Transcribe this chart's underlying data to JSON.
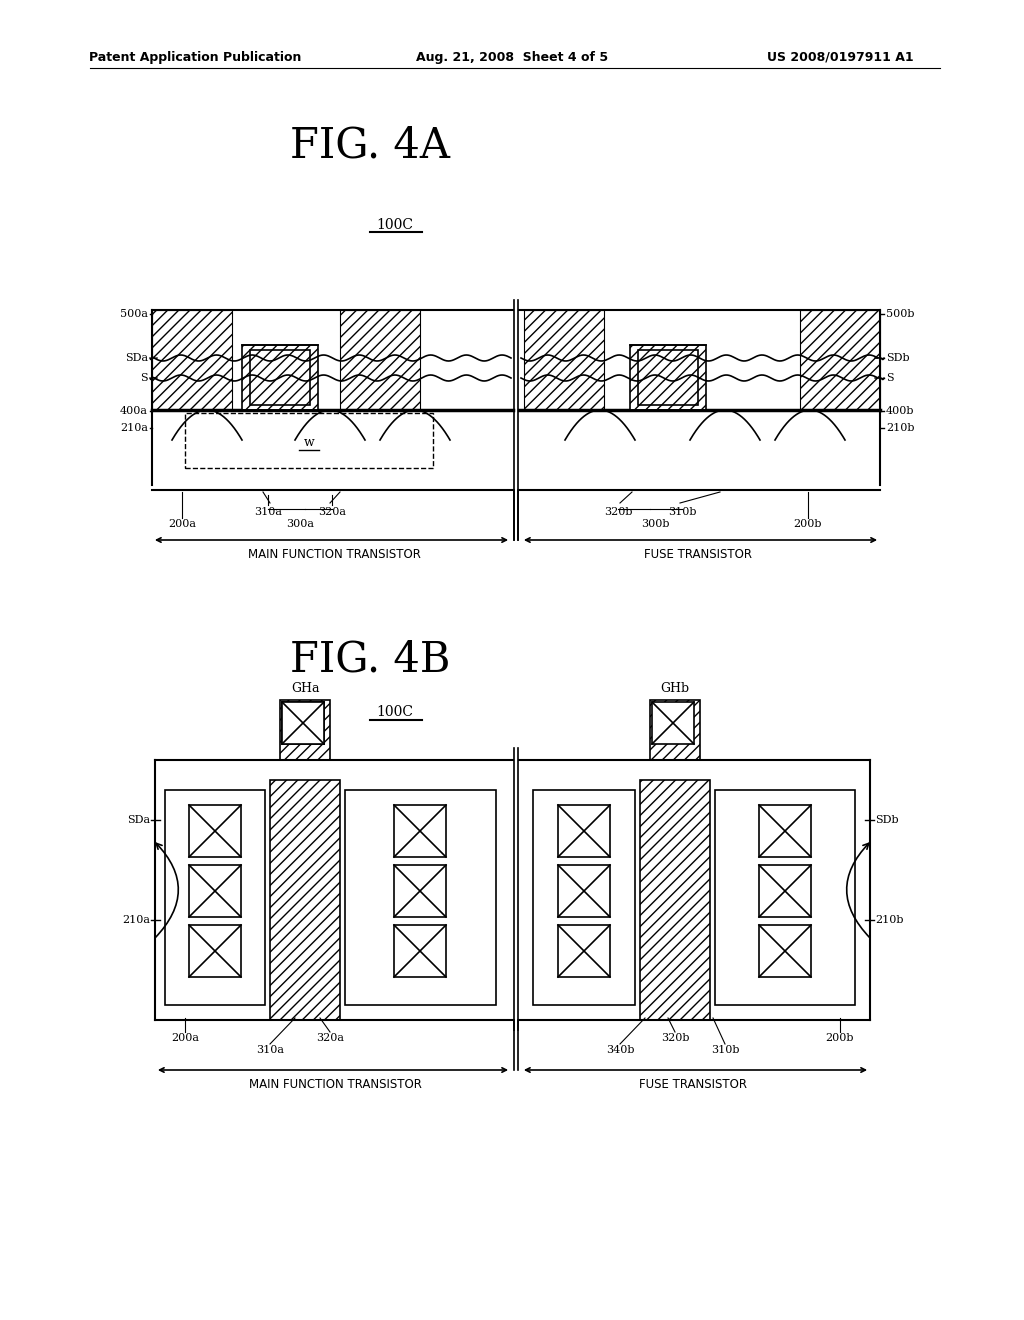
{
  "header_left": "Patent Application Publication",
  "header_mid": "Aug. 21, 2008  Sheet 4 of 5",
  "header_right": "US 2008/0197911 A1",
  "fig4a_title": "FIG. 4A",
  "fig4b_title": "FIG. 4B",
  "label_100c": "100C",
  "bg_color": "#ffffff",
  "line_color": "#000000"
}
